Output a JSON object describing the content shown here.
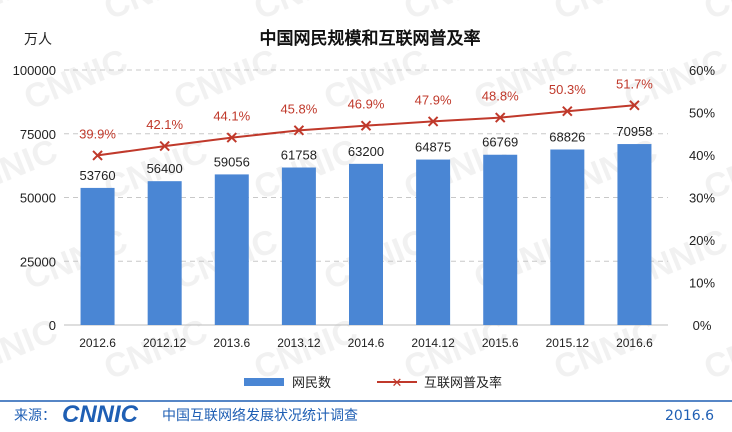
{
  "chart_data": {
    "type": "bar",
    "title": "中国网民规模和互联网普及率",
    "left_unit": "万人",
    "categories": [
      "2012.6",
      "2012.12",
      "2013.6",
      "2013.12",
      "2014.6",
      "2014.12",
      "2015.6",
      "2015.12",
      "2016.6"
    ],
    "series": [
      {
        "name": "网民数",
        "type": "bar",
        "axis": "left",
        "color": "#4a86d4",
        "values": [
          53760,
          56400,
          59056,
          61758,
          63200,
          64875,
          66769,
          68826,
          70958
        ],
        "labels": [
          "53760",
          "56400",
          "59056",
          "61758",
          "63200",
          "64875",
          "66769",
          "68826",
          "70958"
        ]
      },
      {
        "name": "互联网普及率",
        "type": "line",
        "axis": "right",
        "color": "#c0392b",
        "values": [
          39.9,
          42.1,
          44.1,
          45.8,
          46.9,
          47.9,
          48.8,
          50.3,
          51.7
        ],
        "labels": [
          "39.9%",
          "42.1%",
          "44.1%",
          "45.8%",
          "46.9%",
          "47.9%",
          "48.8%",
          "50.3%",
          "51.7%"
        ]
      }
    ],
    "y_left": {
      "min": 0,
      "max": 100000,
      "ticks": [
        0,
        25000,
        50000,
        75000,
        100000
      ],
      "tick_labels": [
        "0",
        "25000",
        "50000",
        "75000",
        "100000"
      ]
    },
    "y_right": {
      "min": 0,
      "max": 60,
      "ticks": [
        0,
        10,
        20,
        30,
        40,
        50,
        60
      ],
      "tick_labels": [
        "0%",
        "10%",
        "20%",
        "30%",
        "40%",
        "50%",
        "60%"
      ]
    },
    "grid": true,
    "legend_position": "bottom"
  },
  "footer": {
    "source_label": "来源：",
    "logo_text": "CNNIC",
    "report_name": "中国互联网络发展状况统计调查",
    "date": "2016.6"
  },
  "watermark_text": "CNNIC",
  "colors": {
    "accent": "#1f5fb4",
    "bar": "#4a86d4",
    "line": "#c0392b"
  }
}
